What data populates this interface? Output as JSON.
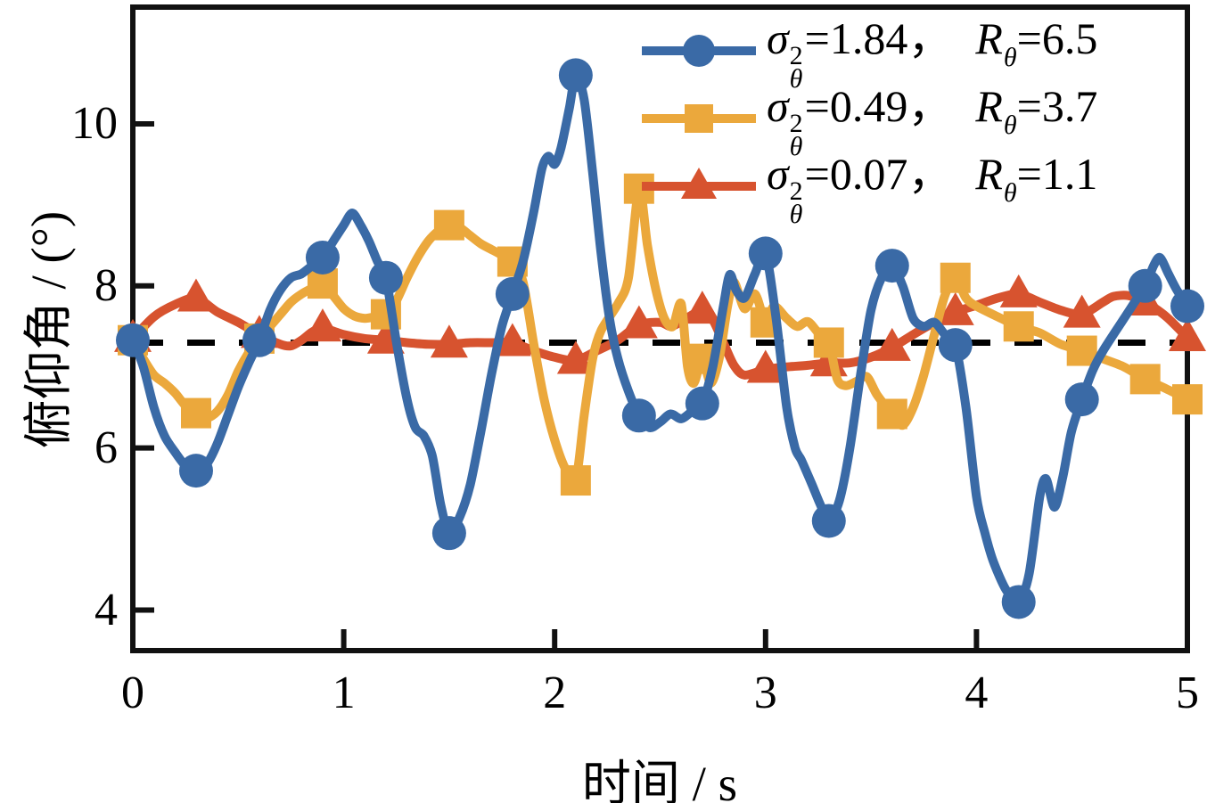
{
  "axes": {
    "x_label": "时间 / s",
    "y_label": "俯仰角 / (°)",
    "x_ticks": [
      "0",
      "1",
      "2",
      "3",
      "4",
      "5"
    ],
    "y_ticks": [
      "4",
      "6",
      "8",
      "10"
    ]
  },
  "legend": {
    "sigma_symbol": "σ",
    "sigma_sup": "2",
    "theta_sub": "θ",
    "equals": "=",
    "comma": "，",
    "R_symbol": "R"
  },
  "chart_data": {
    "type": "line",
    "title": "",
    "xlabel": "时间 / s",
    "ylabel": "俯仰角 / (°)",
    "xlim": [
      0,
      5
    ],
    "ylim": [
      3.5,
      11.44
    ],
    "x_ticks": [
      0,
      1,
      2,
      3,
      4,
      5
    ],
    "y_ticks": [
      4,
      6,
      8,
      10
    ],
    "grid": false,
    "legend_position": "top-right",
    "reference_line": {
      "value": 7.3,
      "style": "dashed",
      "color": "#000000"
    },
    "marker_x": [
      0,
      0.3,
      0.6,
      0.9,
      1.2,
      1.5,
      1.8,
      2.1,
      2.4,
      2.7,
      3.0,
      3.3,
      3.6,
      3.9,
      4.2,
      4.5,
      4.8,
      5.0
    ],
    "series": [
      {
        "name": "σθ²=1.84, Rθ=6.5",
        "sigma2": "1.84",
        "R": "6.5",
        "color": "#3A6AA6",
        "marker": "circle",
        "x": [
          0,
          0.05,
          0.1,
          0.15,
          0.2,
          0.25,
          0.3,
          0.35,
          0.4,
          0.45,
          0.5,
          0.55,
          0.6,
          0.65,
          0.7,
          0.75,
          0.8,
          0.85,
          0.9,
          0.95,
          1.0,
          1.04,
          1.08,
          1.12,
          1.16,
          1.2,
          1.25,
          1.3,
          1.34,
          1.38,
          1.42,
          1.46,
          1.5,
          1.55,
          1.6,
          1.65,
          1.7,
          1.75,
          1.8,
          1.85,
          1.9,
          1.94,
          1.97,
          2.0,
          2.03,
          2.07,
          2.1,
          2.14,
          2.18,
          2.22,
          2.26,
          2.3,
          2.35,
          2.4,
          2.45,
          2.5,
          2.55,
          2.6,
          2.65,
          2.7,
          2.75,
          2.8,
          2.83,
          2.86,
          2.9,
          2.95,
          3.0,
          3.05,
          3.1,
          3.14,
          3.17,
          3.22,
          3.26,
          3.3,
          3.35,
          3.4,
          3.45,
          3.5,
          3.55,
          3.6,
          3.65,
          3.7,
          3.75,
          3.8,
          3.85,
          3.9,
          3.95,
          4.0,
          4.04,
          4.08,
          4.14,
          4.2,
          4.25,
          4.3,
          4.33,
          4.37,
          4.41,
          4.45,
          4.5,
          4.55,
          4.6,
          4.7,
          4.75,
          4.8,
          4.84,
          4.87,
          4.91,
          4.95,
          5.0
        ],
        "y": [
          7.33,
          7.0,
          6.5,
          6.15,
          5.95,
          5.78,
          5.72,
          5.8,
          6.05,
          6.4,
          6.75,
          7.05,
          7.33,
          7.7,
          7.95,
          8.1,
          8.15,
          8.25,
          8.35,
          8.55,
          8.75,
          8.9,
          8.75,
          8.55,
          8.3,
          8.1,
          7.3,
          6.6,
          6.25,
          6.15,
          5.9,
          5.3,
          4.95,
          5.15,
          5.55,
          6.2,
          6.9,
          7.5,
          7.9,
          8.3,
          8.9,
          9.45,
          9.6,
          9.5,
          9.7,
          10.2,
          10.6,
          10.3,
          9.4,
          8.4,
          7.6,
          7.1,
          6.7,
          6.4,
          6.25,
          6.32,
          6.42,
          6.36,
          6.45,
          6.55,
          7.0,
          7.75,
          8.14,
          7.95,
          7.85,
          8.15,
          8.4,
          7.6,
          6.5,
          6.0,
          5.85,
          5.55,
          5.3,
          5.1,
          5.35,
          6.0,
          6.9,
          7.7,
          8.1,
          8.25,
          8.0,
          7.6,
          7.5,
          7.55,
          7.4,
          7.27,
          6.5,
          5.4,
          4.95,
          4.6,
          4.25,
          4.1,
          4.45,
          5.4,
          5.62,
          5.27,
          5.65,
          6.2,
          6.6,
          6.95,
          7.2,
          7.6,
          7.8,
          8.0,
          8.25,
          8.35,
          8.15,
          7.95,
          7.75
        ],
        "marker_y": [
          7.33,
          5.72,
          7.33,
          8.35,
          8.1,
          4.95,
          7.9,
          10.6,
          6.4,
          6.55,
          8.4,
          5.1,
          8.25,
          7.27,
          4.1,
          6.6,
          8.0,
          7.75
        ]
      },
      {
        "name": "σθ²=0.49, Rθ=3.7",
        "sigma2": "0.49",
        "R": "3.7",
        "color": "#EBA83C",
        "marker": "square",
        "x": [
          0,
          0.05,
          0.1,
          0.15,
          0.2,
          0.25,
          0.3,
          0.35,
          0.4,
          0.45,
          0.5,
          0.55,
          0.6,
          0.65,
          0.7,
          0.75,
          0.8,
          0.85,
          0.9,
          0.95,
          1.0,
          1.05,
          1.1,
          1.15,
          1.2,
          1.25,
          1.3,
          1.35,
          1.4,
          1.45,
          1.5,
          1.55,
          1.6,
          1.65,
          1.7,
          1.75,
          1.8,
          1.85,
          1.9,
          1.95,
          2.0,
          2.05,
          2.1,
          2.14,
          2.18,
          2.22,
          2.3,
          2.35,
          2.4,
          2.44,
          2.48,
          2.52,
          2.56,
          2.6,
          2.63,
          2.66,
          2.7,
          2.74,
          2.78,
          2.82,
          2.85,
          2.9,
          2.95,
          3.0,
          3.04,
          3.1,
          3.15,
          3.2,
          3.25,
          3.3,
          3.34,
          3.38,
          3.43,
          3.48,
          3.53,
          3.6,
          3.65,
          3.7,
          3.75,
          3.8,
          3.85,
          3.9,
          3.95,
          4.0,
          4.1,
          4.2,
          4.3,
          4.4,
          4.5,
          4.6,
          4.7,
          4.8,
          4.9,
          5.0
        ],
        "y": [
          7.33,
          7.1,
          6.9,
          6.8,
          6.68,
          6.52,
          6.43,
          6.37,
          6.45,
          6.65,
          6.95,
          7.18,
          7.35,
          7.5,
          7.65,
          7.8,
          7.9,
          7.97,
          8.03,
          7.88,
          7.72,
          7.63,
          7.6,
          7.62,
          7.65,
          7.82,
          8.1,
          8.35,
          8.55,
          8.68,
          8.75,
          8.72,
          8.62,
          8.52,
          8.45,
          8.38,
          8.3,
          8.05,
          7.3,
          6.6,
          6.1,
          5.75,
          5.6,
          6.4,
          7.1,
          7.45,
          7.78,
          8.1,
          9.2,
          8.5,
          7.95,
          7.6,
          7.5,
          7.78,
          7.0,
          6.8,
          7.1,
          6.8,
          7.1,
          7.75,
          8.05,
          7.72,
          7.9,
          7.55,
          7.75,
          7.6,
          7.5,
          7.56,
          7.42,
          7.3,
          6.85,
          6.77,
          6.82,
          6.88,
          6.65,
          6.42,
          6.28,
          6.5,
          6.9,
          7.4,
          7.88,
          8.1,
          7.85,
          7.75,
          7.62,
          7.5,
          7.42,
          7.28,
          7.2,
          7.1,
          7.0,
          6.85,
          6.73,
          6.6
        ],
        "marker_y": [
          7.33,
          6.43,
          7.35,
          8.03,
          7.65,
          8.75,
          8.3,
          5.6,
          9.2,
          7.1,
          7.55,
          7.3,
          6.42,
          8.1,
          7.5,
          7.2,
          6.85,
          6.6
        ]
      },
      {
        "name": "σθ²=0.07, Rθ=1.1",
        "sigma2": "0.07",
        "R": "1.1",
        "color": "#D7532F",
        "marker": "triangle",
        "x": [
          0,
          0.1,
          0.2,
          0.3,
          0.4,
          0.5,
          0.6,
          0.7,
          0.75,
          0.8,
          0.85,
          0.9,
          1.0,
          1.1,
          1.2,
          1.3,
          1.4,
          1.5,
          1.6,
          1.7,
          1.8,
          1.9,
          2.0,
          2.1,
          2.2,
          2.3,
          2.4,
          2.5,
          2.55,
          2.6,
          2.7,
          2.75,
          2.8,
          2.85,
          2.9,
          3.0,
          3.1,
          3.2,
          3.3,
          3.4,
          3.5,
          3.6,
          3.7,
          3.8,
          3.9,
          4.0,
          4.1,
          4.2,
          4.3,
          4.4,
          4.5,
          4.6,
          4.65,
          4.72,
          4.8,
          4.9,
          5.0
        ],
        "y": [
          7.35,
          7.62,
          7.77,
          7.85,
          7.68,
          7.55,
          7.4,
          7.28,
          7.26,
          7.33,
          7.43,
          7.48,
          7.4,
          7.35,
          7.33,
          7.3,
          7.28,
          7.28,
          7.3,
          7.3,
          7.3,
          7.2,
          7.12,
          7.08,
          7.2,
          7.33,
          7.52,
          7.55,
          7.5,
          7.56,
          7.7,
          7.58,
          7.3,
          7.02,
          6.9,
          6.97,
          7.0,
          7.02,
          7.05,
          7.05,
          7.12,
          7.24,
          7.4,
          7.55,
          7.68,
          7.76,
          7.85,
          7.9,
          7.8,
          7.7,
          7.65,
          7.8,
          7.87,
          7.88,
          7.8,
          7.62,
          7.36
        ],
        "marker_y": [
          7.35,
          7.85,
          7.4,
          7.48,
          7.33,
          7.28,
          7.3,
          7.08,
          7.52,
          7.7,
          6.97,
          7.05,
          7.24,
          7.68,
          7.9,
          7.65,
          7.8,
          7.36
        ]
      }
    ]
  },
  "colors": {
    "frame": "#111111",
    "background": "#ffffff",
    "reference": "#000000"
  }
}
